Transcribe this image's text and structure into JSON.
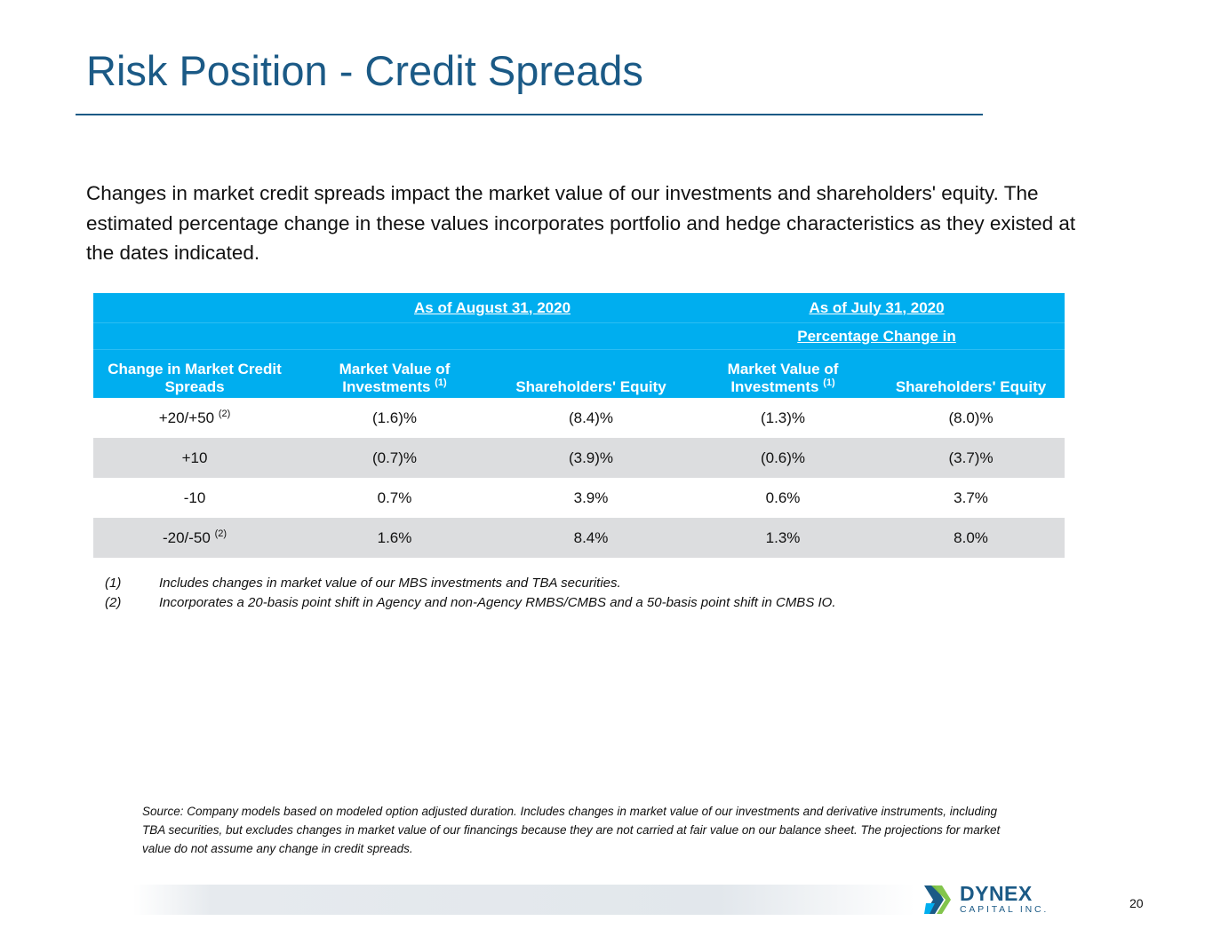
{
  "title": "Risk Position - Credit Spreads",
  "intro": "Changes in market credit spreads impact the market value of our investments and shareholders' equity. The estimated percentage change in these values incorporates portfolio and hedge characteristics as they existed at the dates indicated.",
  "table": {
    "period1": "As of August 31, 2020",
    "period2": "As of July 31, 2020",
    "pct_change": "Percentage Change in",
    "col0_line1": "Change in Market Credit",
    "col0_line2": "Spreads",
    "mv_line1": "Market Value of",
    "mv_line2": "Investments",
    "mv_footnote": "(1)",
    "se_label": "Shareholders' Equity",
    "rows": [
      {
        "label": "+20/+50",
        "footnote": "(2)",
        "values": [
          "(1.6)%",
          "(8.4)%",
          "(1.3)%",
          "(8.0)%"
        ]
      },
      {
        "label": "+10",
        "footnote": "",
        "values": [
          "(0.7)%",
          "(3.9)%",
          "(0.6)%",
          "(3.7)%"
        ]
      },
      {
        "label": "-10",
        "footnote": "",
        "values": [
          "0.7%",
          "3.9%",
          "0.6%",
          "3.7%"
        ]
      },
      {
        "label": "-20/-50",
        "footnote": "(2)",
        "values": [
          "1.6%",
          "8.4%",
          "1.3%",
          "8.0%"
        ]
      }
    ]
  },
  "notes": [
    {
      "num": "(1)",
      "text": "Includes changes in market value of our MBS investments and TBA securities."
    },
    {
      "num": "(2)",
      "text": "Incorporates a 20-basis point shift in Agency and non-Agency RMBS/CMBS and a 50-basis point shift in CMBS IO."
    }
  ],
  "source": "Source: Company models based on modeled option adjusted duration. Includes changes in market value of our investments and derivative instruments, including TBA securities, but excludes changes in market value of our financings because they are not carried at fair value on our balance sheet. The projections for market value do not assume any change in credit spreads.",
  "logo": {
    "name": "DYNEX",
    "sub": "CAPITAL INC."
  },
  "page_number": "20",
  "colors": {
    "title": "#1b5a86",
    "header_bg": "#00aeef",
    "row_shade": "#dcdddf"
  }
}
